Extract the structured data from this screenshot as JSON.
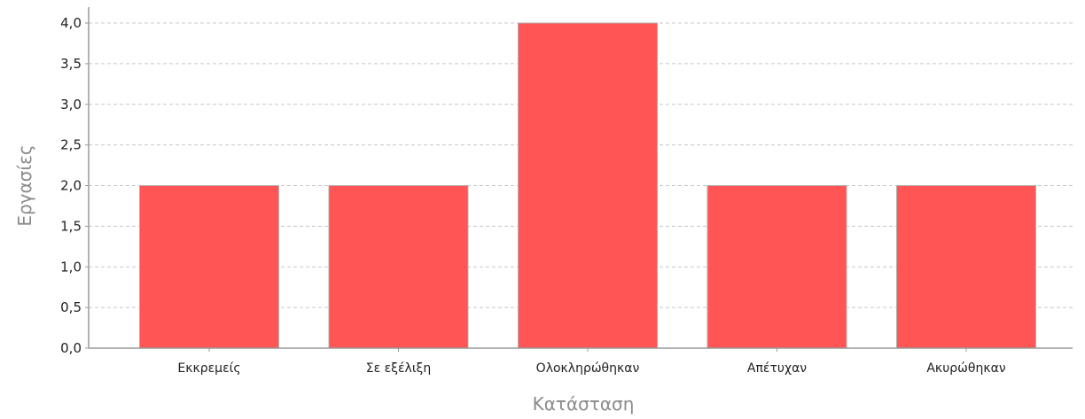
{
  "chart_data": {
    "type": "bar",
    "categories": [
      "Εκκρεμείς",
      "Σε εξέλιξη",
      "Ολοκληρώθηκαν",
      "Απέτυχαν",
      "Ακυρώθηκαν"
    ],
    "values": [
      2,
      2,
      4,
      2,
      2
    ],
    "title": "",
    "xlabel": "Κατάσταση",
    "ylabel": "Εργασίες",
    "ylim": [
      0,
      4
    ],
    "yticks": [
      "0,0",
      "0,5",
      "1,0",
      "1,5",
      "2,0",
      "2,5",
      "3,0",
      "3,5",
      "4,0"
    ],
    "grid": true,
    "legend": "none",
    "bar_color": "#ff5555"
  }
}
